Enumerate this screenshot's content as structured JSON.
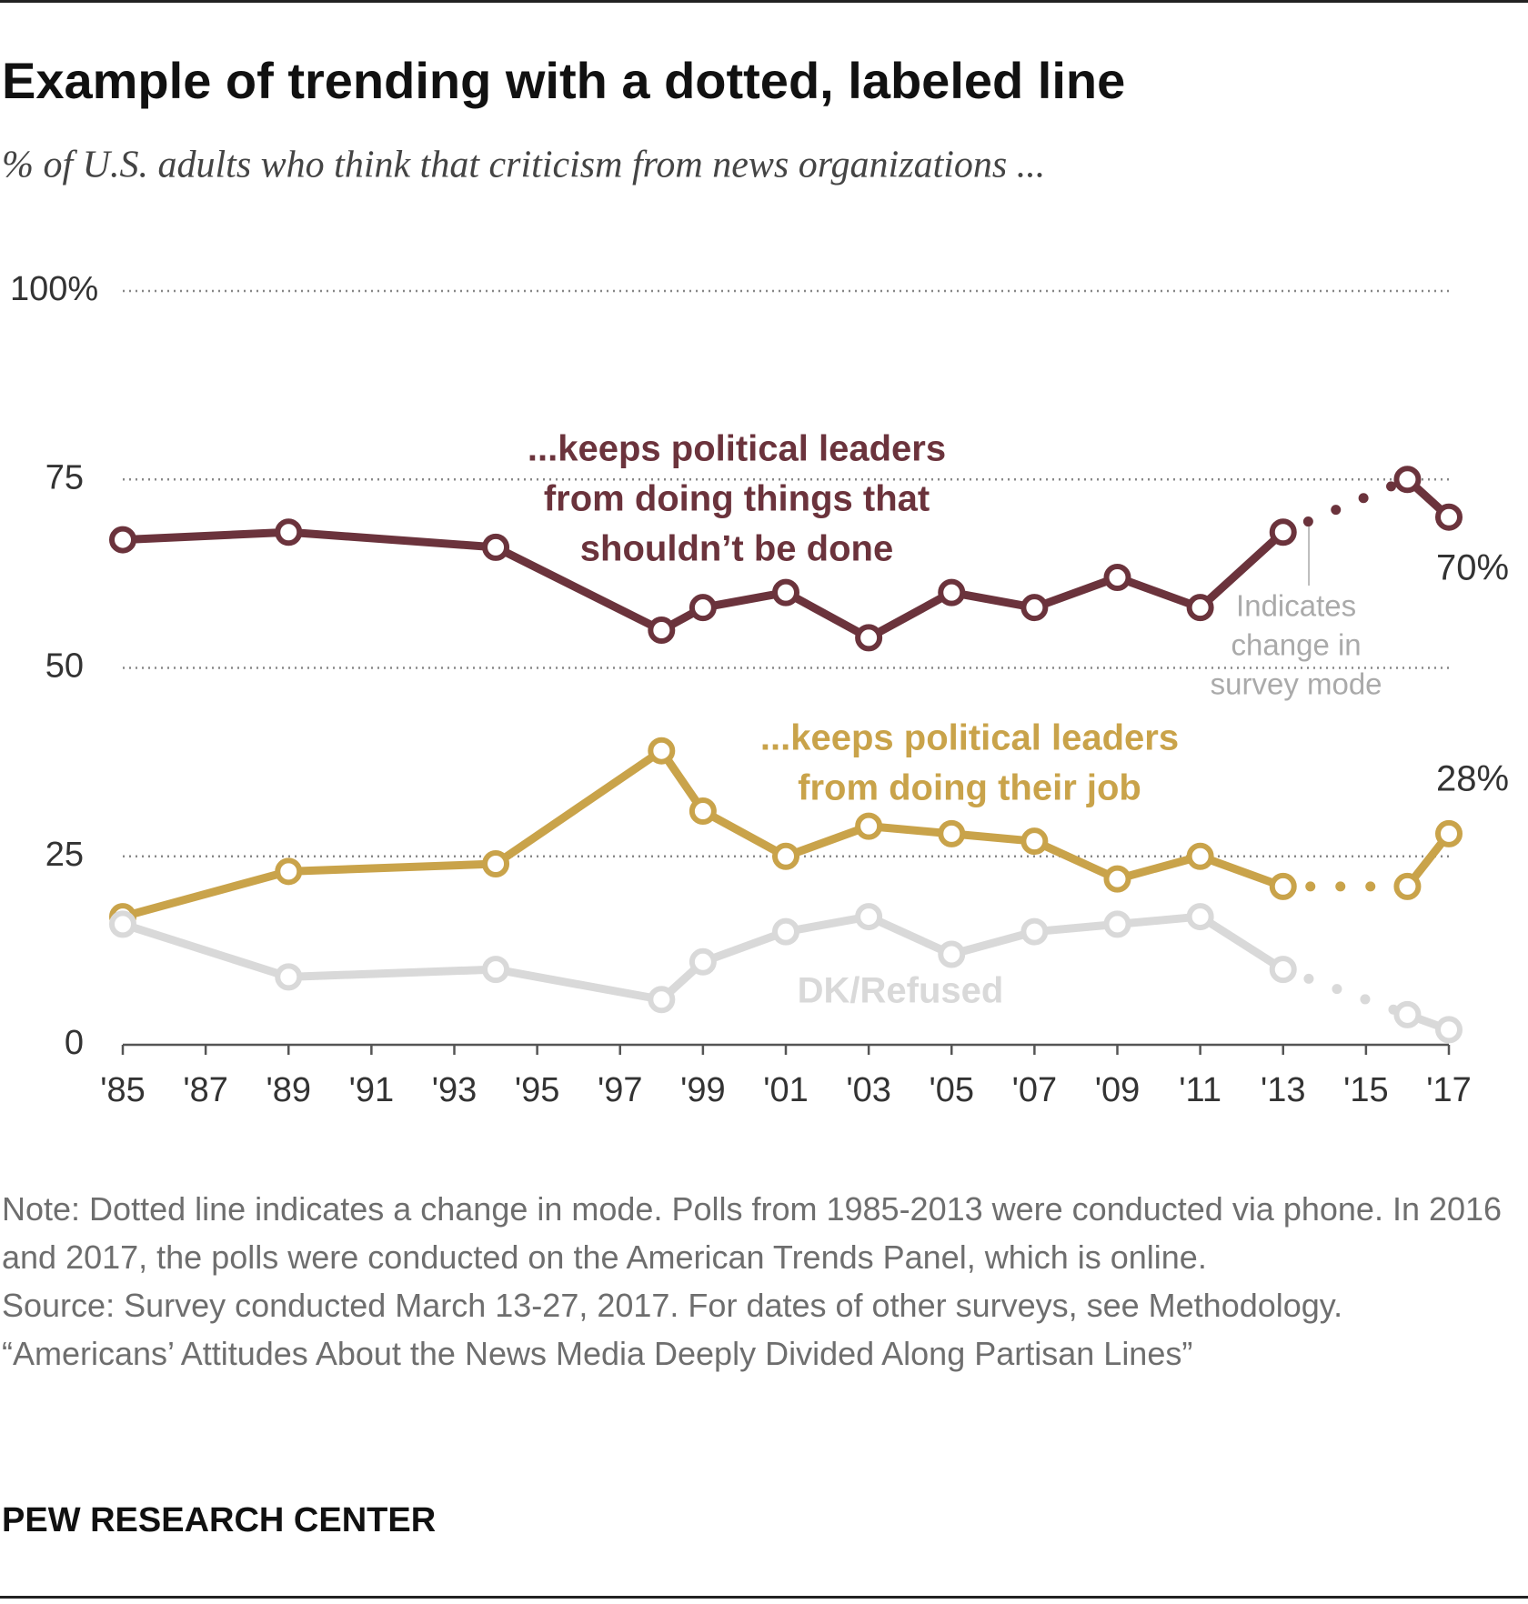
{
  "chart_data": {
    "type": "line",
    "title": "Example of trending with a dotted, labeled line",
    "subtitle": "% of U.S. adults who think that criticism from news organizations ...",
    "x": [
      1985,
      1989,
      1994,
      1998,
      1999,
      2001,
      2003,
      2005,
      2007,
      2009,
      2011,
      2013,
      2016,
      2017
    ],
    "series": [
      {
        "label": [
          "...keeps political leaders",
          "from doing things that",
          "shouldn’t be done"
        ],
        "color": "#6b333c",
        "values": [
          67,
          68,
          66,
          55,
          58,
          60,
          54,
          60,
          58,
          62,
          58,
          68,
          75,
          70
        ],
        "value_labels": [
          null,
          null,
          null,
          null,
          null,
          null,
          null,
          null,
          null,
          null,
          null,
          null,
          null,
          "70%"
        ]
      },
      {
        "label": [
          "...keeps political leaders",
          "from doing their job"
        ],
        "color": "#c9a34a",
        "values": [
          17,
          23,
          24,
          39,
          31,
          25,
          29,
          28,
          27,
          22,
          25,
          21,
          21,
          28
        ],
        "value_labels": [
          null,
          null,
          null,
          null,
          null,
          null,
          null,
          null,
          null,
          null,
          null,
          null,
          null,
          "28%"
        ]
      },
      {
        "label": [
          "DK/Refused"
        ],
        "color": "#d9d9d9",
        "values": [
          16,
          9,
          10,
          6,
          11,
          15,
          17,
          12,
          15,
          16,
          17,
          10,
          4,
          2
        ]
      }
    ],
    "dotted_between": [
      2013,
      2016
    ],
    "annotation": [
      "Indicates",
      "change in",
      "survey mode"
    ],
    "xlim": [
      1985,
      2017
    ],
    "xticks": [
      {
        "value": 1985,
        "label": "'85"
      },
      {
        "value": 1987,
        "label": "'87"
      },
      {
        "value": 1989,
        "label": "'89"
      },
      {
        "value": 1991,
        "label": "'91"
      },
      {
        "value": 1993,
        "label": "'93"
      },
      {
        "value": 1995,
        "label": "'95"
      },
      {
        "value": 1997,
        "label": "'97"
      },
      {
        "value": 1999,
        "label": "'99"
      },
      {
        "value": 2001,
        "label": "'01"
      },
      {
        "value": 2003,
        "label": "'03"
      },
      {
        "value": 2005,
        "label": "'05"
      },
      {
        "value": 2007,
        "label": "'07"
      },
      {
        "value": 2009,
        "label": "'09"
      },
      {
        "value": 2011,
        "label": "'11"
      },
      {
        "value": 2013,
        "label": "'13"
      },
      {
        "value": 2015,
        "label": "'15"
      },
      {
        "value": 2017,
        "label": "'17"
      }
    ],
    "ylim": [
      0,
      100
    ],
    "yticks": [
      0,
      25,
      50,
      75,
      {
        "value": 100,
        "label": "100%"
      }
    ],
    "grid": true,
    "note": "Note: Dotted line indicates a change in mode. Polls from 1985-2013 were conducted via phone. In 2016 and 2017, the polls were conducted on the American Trends Panel, which is online.",
    "source": "Source: Survey conducted March 13-27, 2017. For dates of other surveys, see Methodology.",
    "report": "“Americans’ Attitudes About the News Media Deeply Divided Along Partisan Lines”",
    "credit": "PEW RESEARCH CENTER"
  }
}
